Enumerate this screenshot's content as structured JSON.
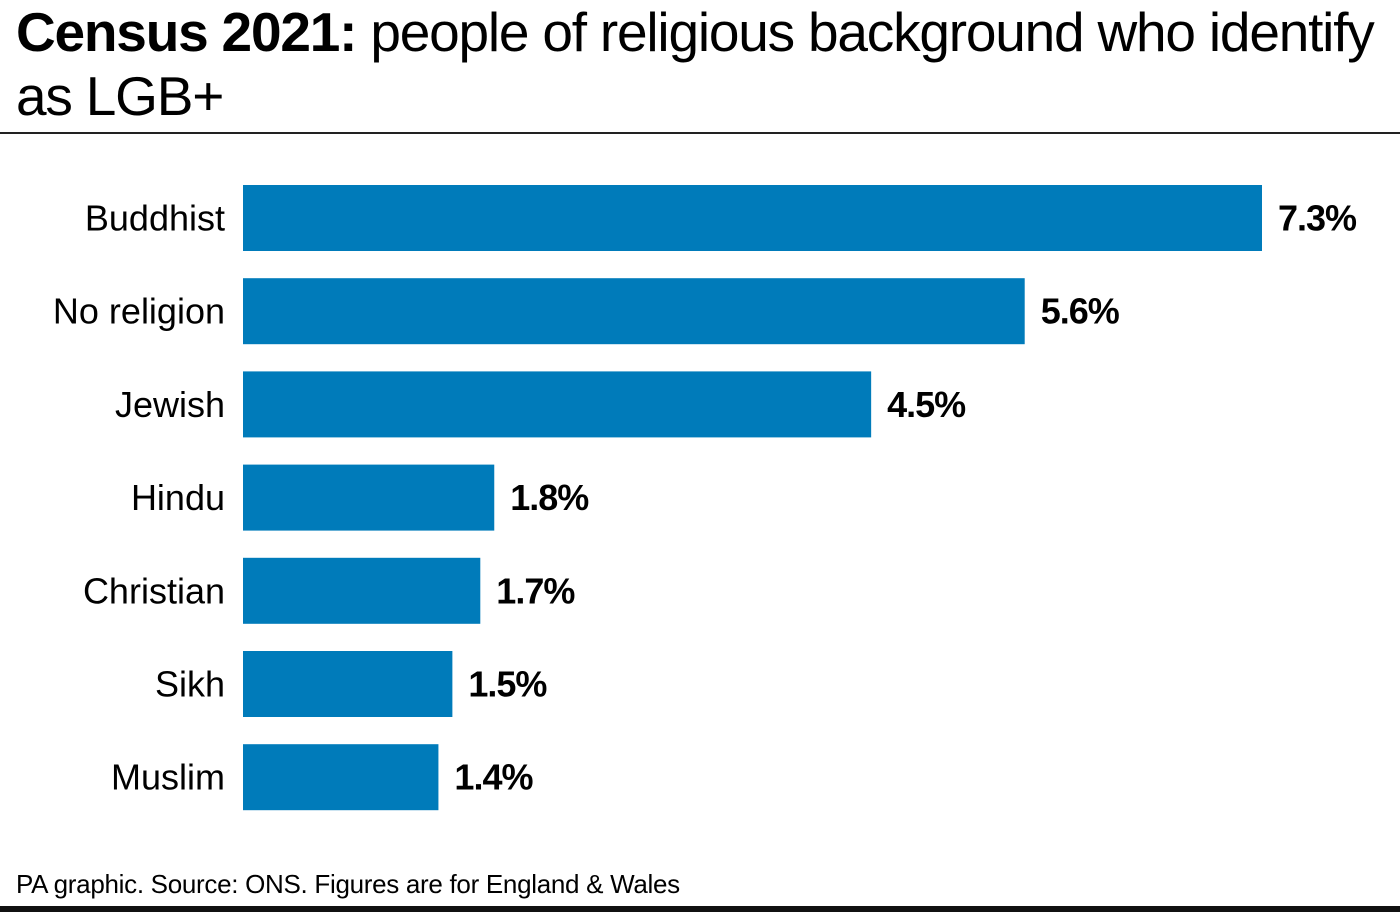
{
  "title": {
    "bold": "Census 2021:",
    "regular": " people of religious background who identify as LGB+"
  },
  "source": "PA graphic. Source: ONS. Figures are for England & Wales",
  "colors": {
    "bar": "#007bba",
    "text": "#000000",
    "rule": "#222222"
  },
  "chart_data": {
    "type": "bar",
    "orientation": "horizontal",
    "categories": [
      "Buddhist",
      "No religion",
      "Jewish",
      "Hindu",
      "Christian",
      "Sikh",
      "Muslim"
    ],
    "values": [
      7.3,
      5.6,
      4.5,
      1.8,
      1.7,
      1.5,
      1.4
    ],
    "value_labels": [
      "7.3%",
      "5.6%",
      "4.5%",
      "1.8%",
      "1.7%",
      "1.5%",
      "1.4%"
    ],
    "unit": "%",
    "grid": false,
    "legend": "none"
  }
}
